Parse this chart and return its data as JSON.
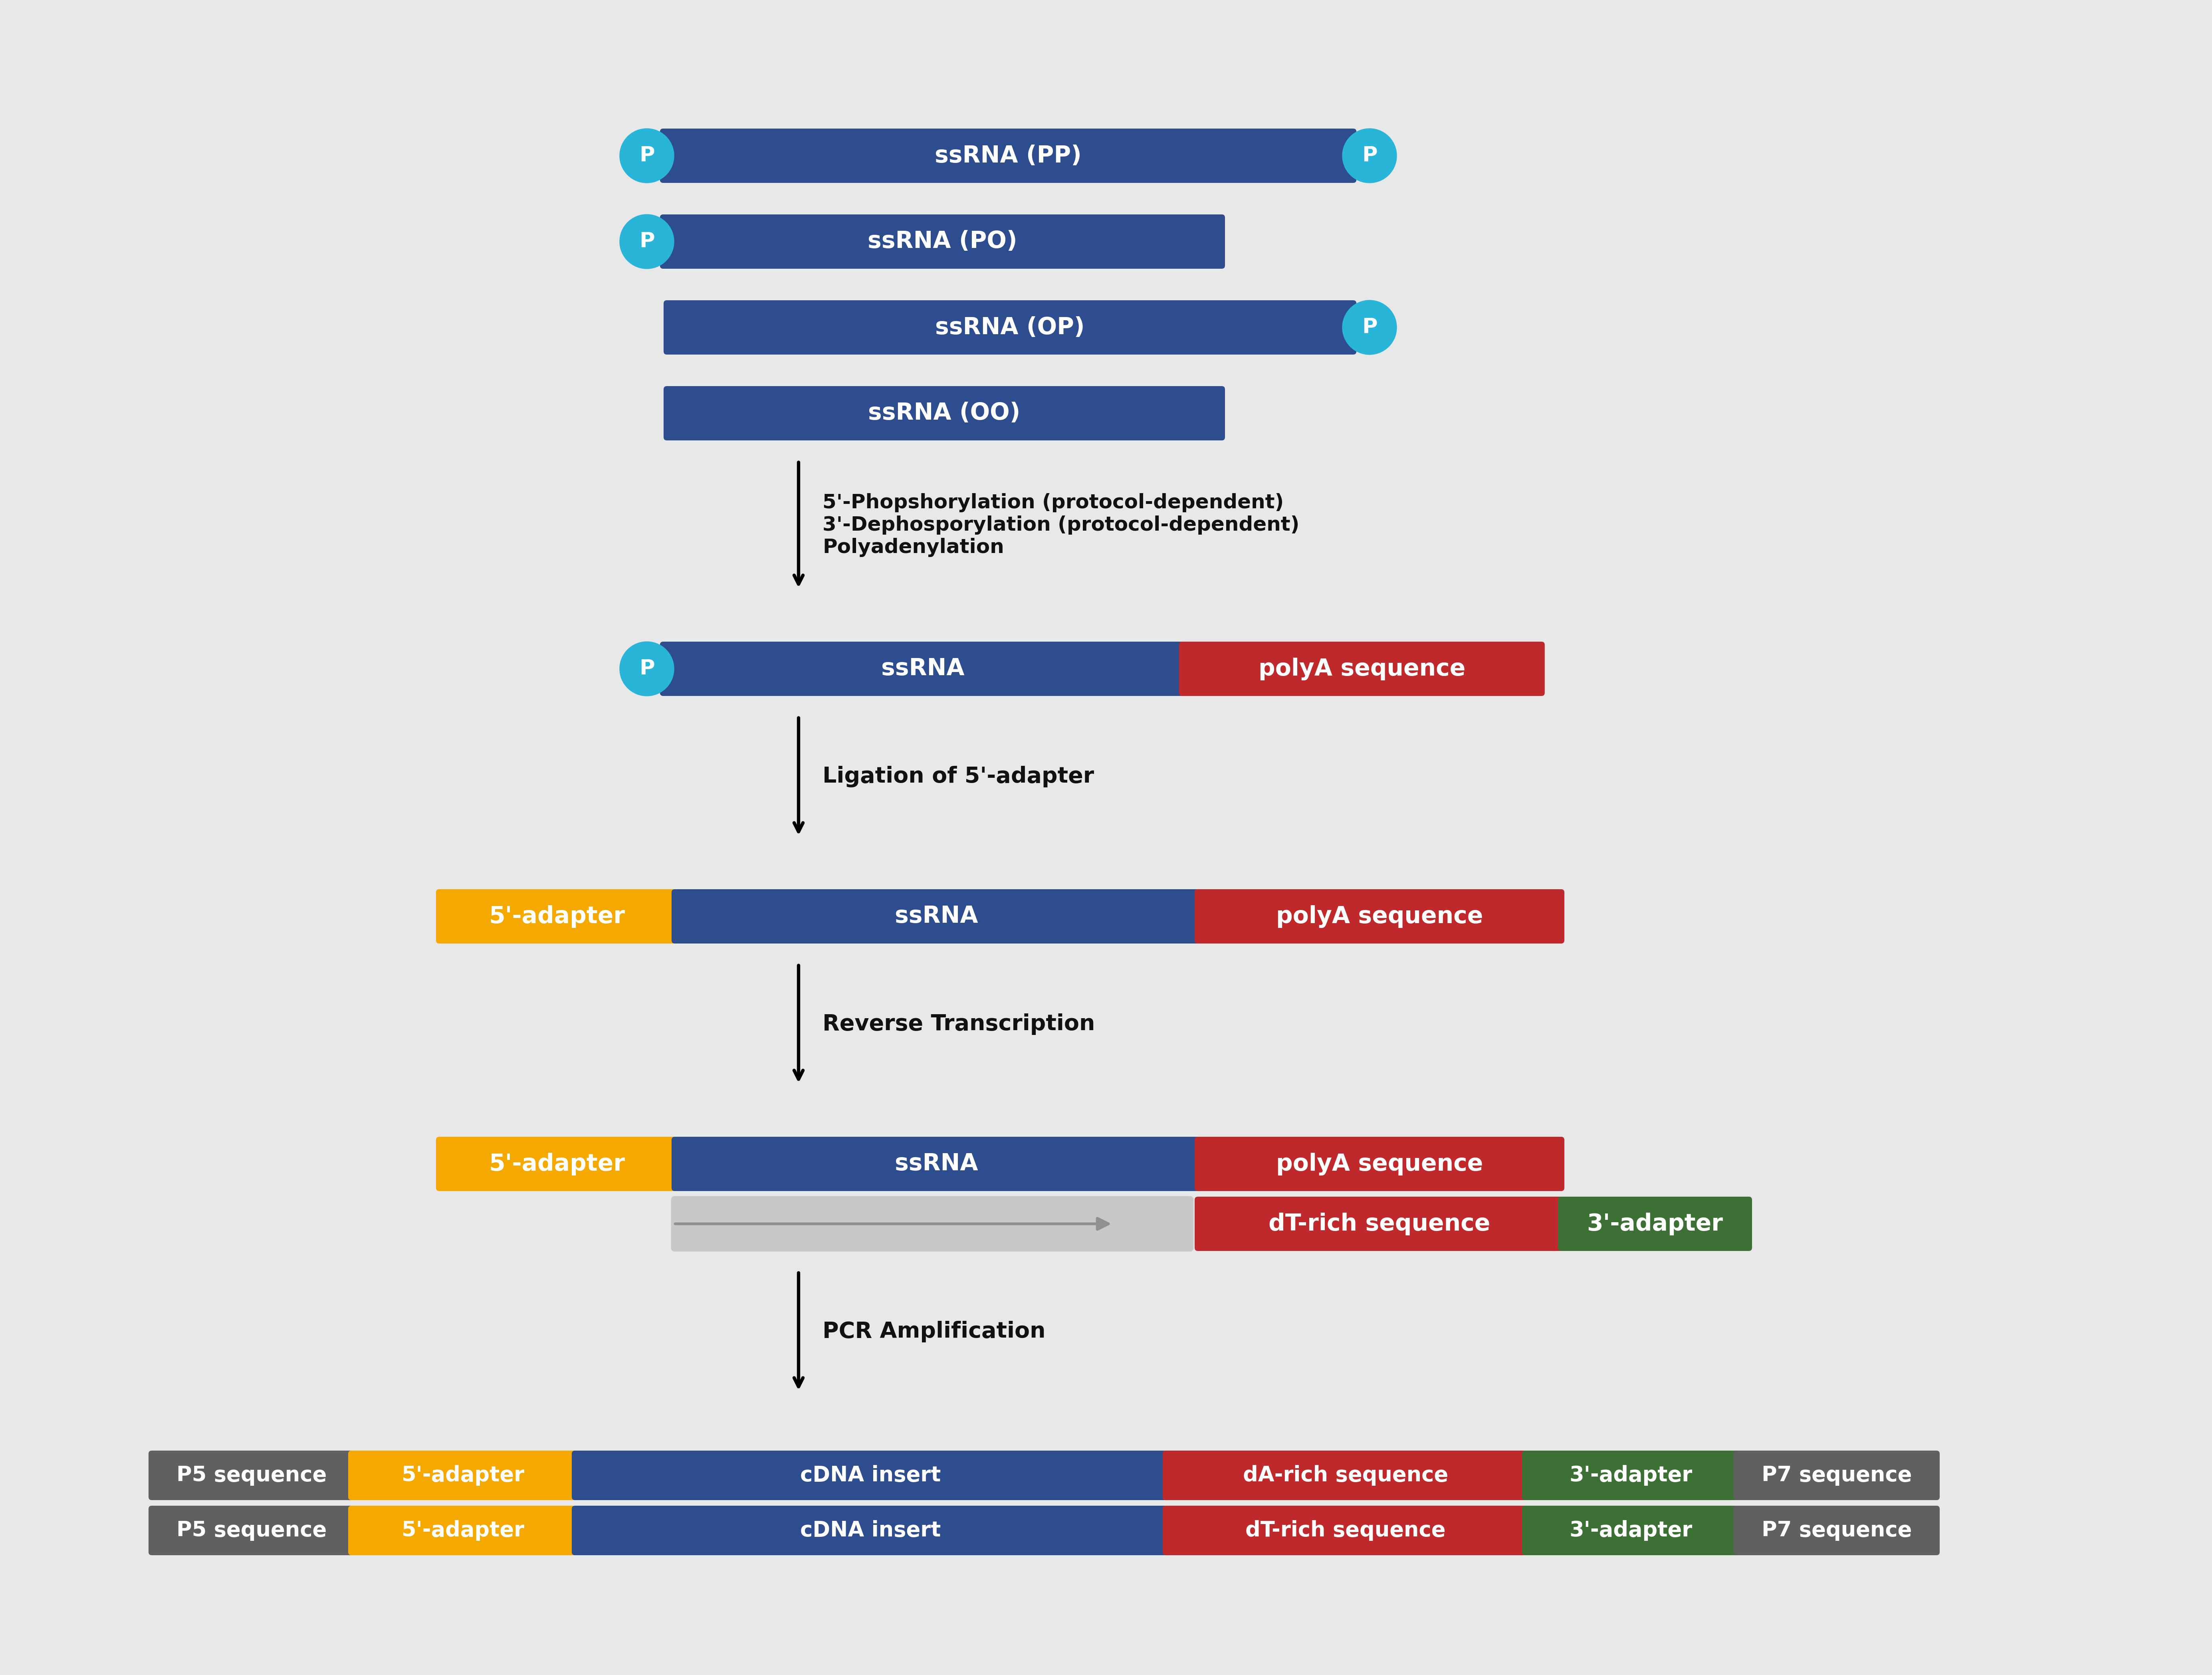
{
  "bg_color": "#e8e8e8",
  "dark_blue": "#2e4d8e",
  "red": "#c0292b",
  "yellow": "#f5a800",
  "green": "#3d7035",
  "gray_dark": "#606060",
  "light_gray": "#c8c8c8",
  "cyan": "#29b5d8",
  "white": "#ffffff",
  "text_dark": "#111111",
  "ssrna_rows": [
    {
      "label": "ssRNA (PP)",
      "has_p_left": true,
      "has_p_right": true,
      "short": false
    },
    {
      "label": "ssRNA (PO)",
      "has_p_left": true,
      "has_p_right": false,
      "short": true
    },
    {
      "label": "ssRNA (OP)",
      "has_p_left": false,
      "has_p_right": true,
      "short": false
    },
    {
      "label": "ssRNA (OO)",
      "has_p_left": false,
      "has_p_right": false,
      "short": true
    }
  ],
  "arrow1_label": "5'-Phopshorylation (protocol-dependent)\n3'-Dephosporylation (protocol-dependent)\nPolyadenylation",
  "arrow2_label": "Ligation of 5'-adapter",
  "arrow3_label": "Reverse Transcription",
  "arrow4_label": "PCR Amplification",
  "pcr1_labels": [
    "P5 sequence",
    "5'-adapter",
    "cDNA insert",
    "dA-rich sequence",
    "3'-adapter",
    "P7 sequence"
  ],
  "pcr2_labels": [
    "P5 sequence",
    "5'-adapter",
    "cDNA insert",
    "dT-rich sequence",
    "3'-adapter",
    "P7 sequence"
  ]
}
